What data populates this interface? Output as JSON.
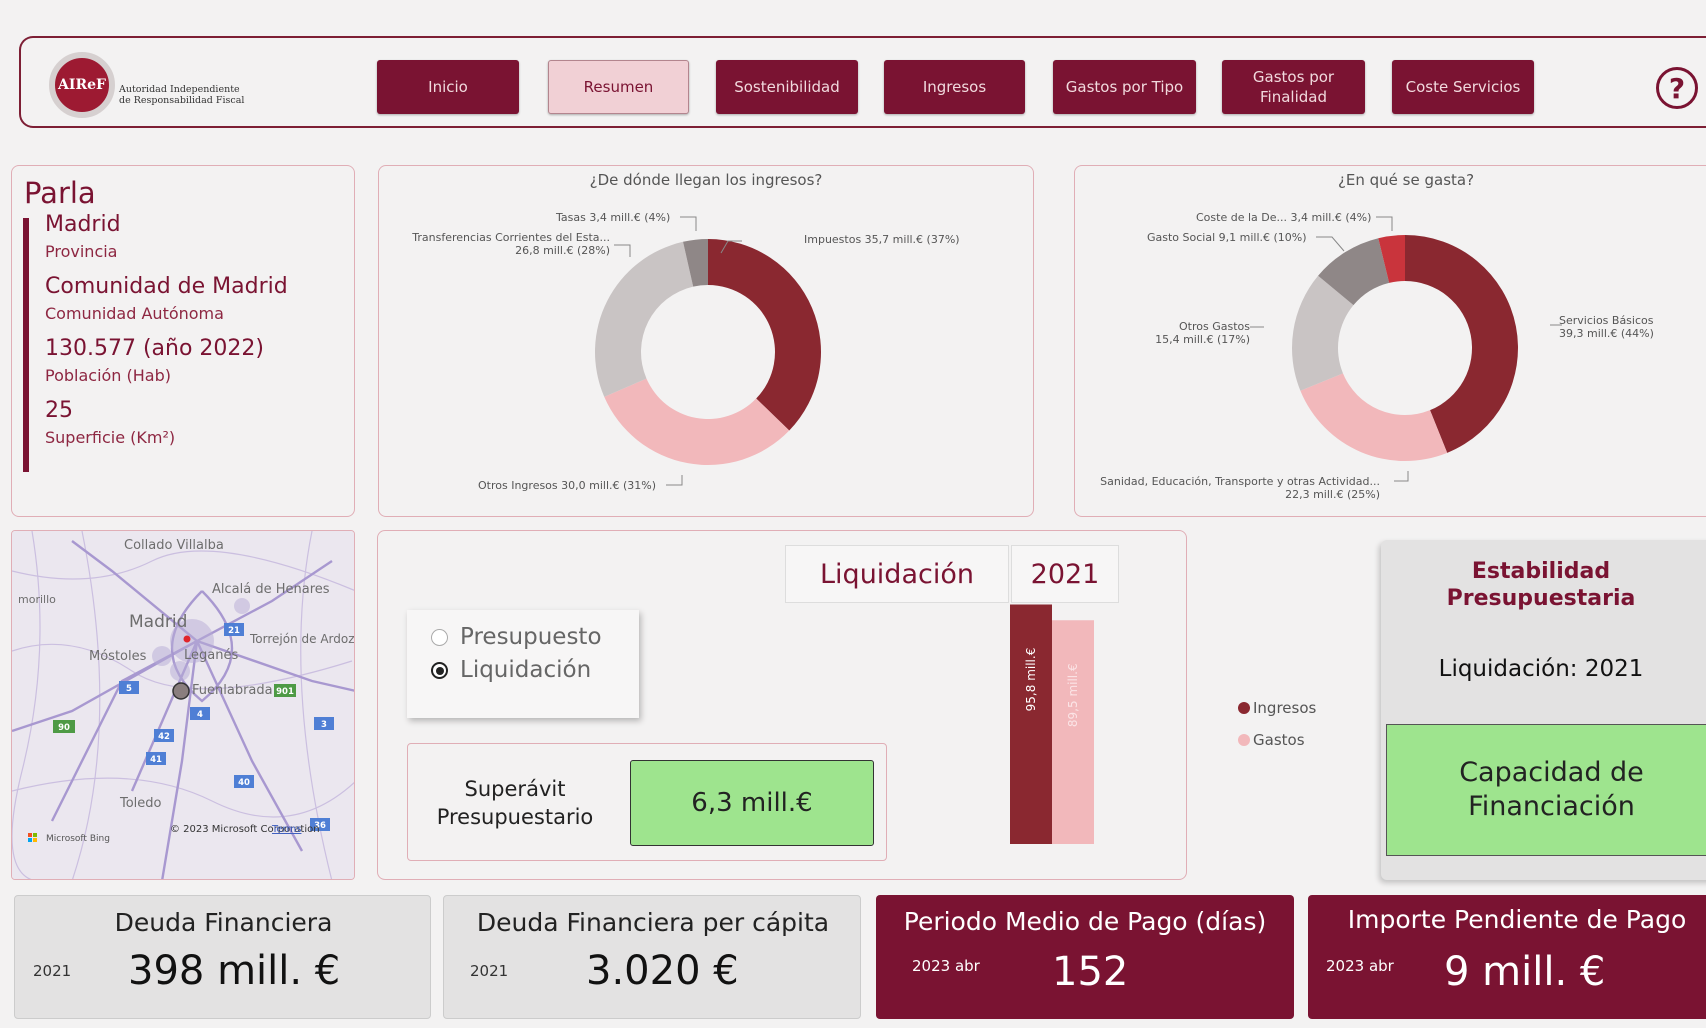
{
  "header": {
    "logo_mark": "AIReF",
    "logo_line1": "Autoridad Independiente",
    "logo_line2": "de Responsabilidad Fiscal",
    "nav": [
      {
        "label": "Inicio",
        "active": false
      },
      {
        "label": "Resumen",
        "active": true
      },
      {
        "label": "Sostenibilidad",
        "active": false
      },
      {
        "label": "Ingresos",
        "active": false
      },
      {
        "label": "Gastos por Tipo",
        "active": false
      },
      {
        "label": "Gastos por Finalidad",
        "active": false
      },
      {
        "label": "Coste Servicios",
        "active": false
      }
    ],
    "help_glyph": "?"
  },
  "info": {
    "municipality": "Parla",
    "province": "Madrid",
    "province_label": "Provincia",
    "community": "Comunidad de Madrid",
    "community_label": "Comunidad Autónoma",
    "population": "130.577 (año 2022)",
    "population_label": "Población (Hab)",
    "area": "25",
    "area_label": "Superficie (Km²)"
  },
  "map": {
    "places": [
      "Collado Villalba",
      "Alcalá de Henares",
      "morillo",
      "Madrid",
      "Torrejón de Ardoz",
      "Móstoles",
      "Leganés",
      "Fuenlabrada",
      "Toledo"
    ],
    "road_shields": [
      "21",
      "5",
      "901",
      "4",
      "90",
      "42",
      "3",
      "41",
      "40",
      "36"
    ],
    "attribution": "© 2023 Microsoft Corporation",
    "terms": "Terms",
    "brand": "Microsoft Bing"
  },
  "ingresos": {
    "title": "¿De dónde llegan los ingresos?",
    "labels": {
      "tasas": "Tasas 3,4 mill.€ (4%)",
      "transf1": "Transferencias Corrientes del Esta...",
      "transf2": "26,8 mill.€ (28%)",
      "impuestos": "Impuestos 35,7 mill.€ (37%)",
      "otros": "Otros Ingresos 30,0 mill.€ (31%)"
    },
    "colors": [
      "#8a2830",
      "#f2b8bb",
      "#c9c4c4",
      "#8f8787"
    ]
  },
  "gastos": {
    "title": "¿En qué se gasta?",
    "labels": {
      "coste": "Coste de la De... 3,4 mill.€ (4%)",
      "social": "Gasto Social 9,1 mill.€ (10%)",
      "otros1": "Otros Gastos",
      "otros2": "15,4 mill.€ (17%)",
      "servicios1": "Servicios Básicos",
      "servicios2": "39,3 mill.€ (44%)",
      "sanidad1": "Sanidad, Educación, Transporte y otras Actividad...",
      "sanidad2": "22,3 mill.€ (25%)"
    },
    "colors": [
      "#8a2830",
      "#f2b8bb",
      "#c9c4c4",
      "#8f8787",
      "#c9343c"
    ]
  },
  "chart_data": [
    {
      "type": "pie",
      "title": "¿De dónde llegan los ingresos?",
      "categories": [
        "Impuestos",
        "Otros Ingresos",
        "Transferencias Corrientes del Esta...",
        "Tasas"
      ],
      "values": [
        35.7,
        30.0,
        26.8,
        3.4
      ],
      "percent": [
        37,
        31,
        28,
        4
      ]
    },
    {
      "type": "pie",
      "title": "¿En qué se gasta?",
      "categories": [
        "Servicios Básicos",
        "Sanidad, Educación, Transporte y otras Actividad...",
        "Otros Gastos",
        "Gasto Social",
        "Coste de la De..."
      ],
      "values": [
        39.3,
        22.3,
        15.4,
        9.1,
        3.4
      ],
      "percent": [
        44,
        25,
        17,
        10,
        4
      ]
    },
    {
      "type": "bar",
      "categories": [
        "Ingresos",
        "Gastos"
      ],
      "values": [
        95.8,
        89.5
      ],
      "data_labels": [
        "95,8 mill.€",
        "89,5 mill.€"
      ],
      "colors": [
        "#8a2830",
        "#f2b8bb"
      ]
    }
  ],
  "selection": {
    "mode": "Liquidación",
    "year": "2021",
    "options": [
      {
        "label": "Presupuesto",
        "checked": false
      },
      {
        "label": "Liquidación",
        "checked": true
      }
    ]
  },
  "superavit": {
    "label": "Superávit Presupuestario",
    "value": "6,3 mill.€"
  },
  "legend": {
    "ingresos": "Ingresos",
    "gastos": "Gastos"
  },
  "estabilidad": {
    "title": "Estabilidad Presupuestaria",
    "liq": "Liquidación: 2021",
    "value": "Capacidad de Financiación"
  },
  "kpis": [
    {
      "title": "Deuda Financiera",
      "period": "2021",
      "value": "398 mill. €"
    },
    {
      "title": "Deuda Financiera per cápita",
      "period": "2021",
      "value": "3.020 €"
    },
    {
      "title": "Periodo Medio de Pago (días)",
      "period": "2023 abr",
      "value": "152"
    },
    {
      "title": "Importe Pendiente de Pago",
      "period": "2023 abr",
      "value": "9 mill. €"
    }
  ]
}
